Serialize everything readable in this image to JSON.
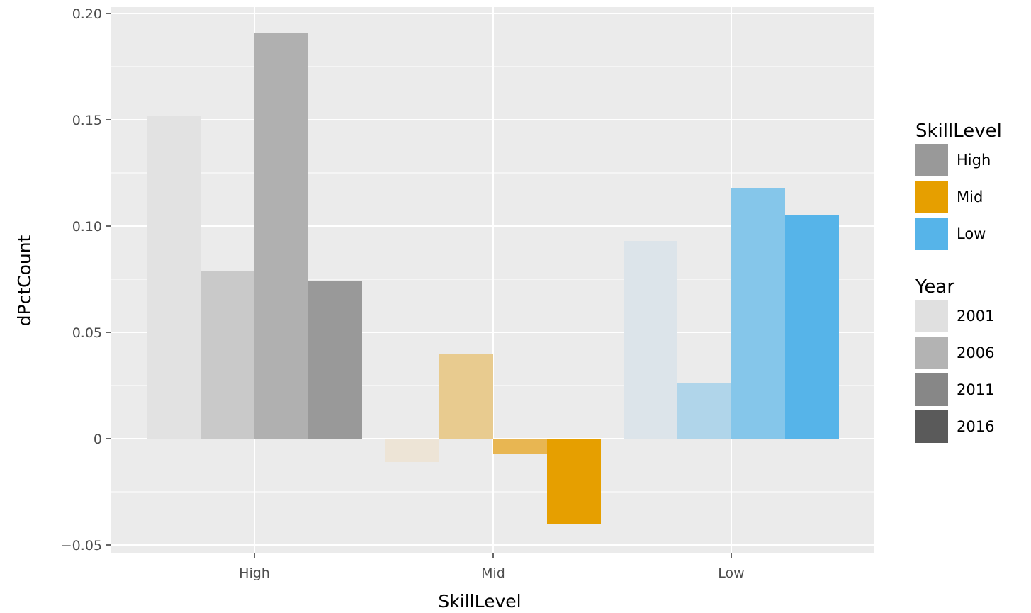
{
  "chart_data": {
    "type": "bar",
    "categories": [
      "High",
      "Mid",
      "Low"
    ],
    "xlabel": "SkillLevel",
    "ylabel": "dPctCount",
    "ylim": [
      -0.05,
      0.2
    ],
    "yticks": [
      -0.05,
      0,
      0.05,
      0.1,
      0.15,
      0.2
    ],
    "ytick_labels": [
      "−0.05",
      "0",
      "0.05",
      "0.10",
      "0.15",
      "0.20"
    ],
    "grid": true,
    "legend_position": "right",
    "years": [
      "2001",
      "2006",
      "2011",
      "2016"
    ],
    "series": [
      {
        "name": "2001",
        "values": [
          0.152,
          -0.011,
          0.093
        ]
      },
      {
        "name": "2006",
        "values": [
          0.079,
          0.04,
          0.026
        ]
      },
      {
        "name": "2011",
        "values": [
          0.191,
          -0.007,
          0.118
        ]
      },
      {
        "name": "2016",
        "values": [
          0.074,
          -0.04,
          0.105
        ]
      }
    ],
    "bar_colors": {
      "High": [
        "#e2e2e2",
        "#c9c9c9",
        "#b0b0b0",
        "#999999"
      ],
      "Mid": [
        "#ede4d6",
        "#e8cb8f",
        "#e8b652",
        "#e69f00"
      ],
      "Low": [
        "#dce4ea",
        "#b0d5ea",
        "#85c6ea",
        "#56b4e9"
      ]
    },
    "legends": [
      {
        "title": "SkillLevel",
        "entries": [
          {
            "label": "High",
            "color": "#999999"
          },
          {
            "label": "Mid",
            "color": "#e69f00"
          },
          {
            "label": "Low",
            "color": "#56b4e9"
          }
        ]
      },
      {
        "title": "Year",
        "entries": [
          {
            "label": "2001",
            "color": "#e0e0e0"
          },
          {
            "label": "2006",
            "color": "#b3b3b3"
          },
          {
            "label": "2011",
            "color": "#878787"
          },
          {
            "label": "2016",
            "color": "#5a5a5a"
          }
        ]
      }
    ],
    "panel_background": "#ebebeb",
    "grid_color": "#ffffff"
  }
}
